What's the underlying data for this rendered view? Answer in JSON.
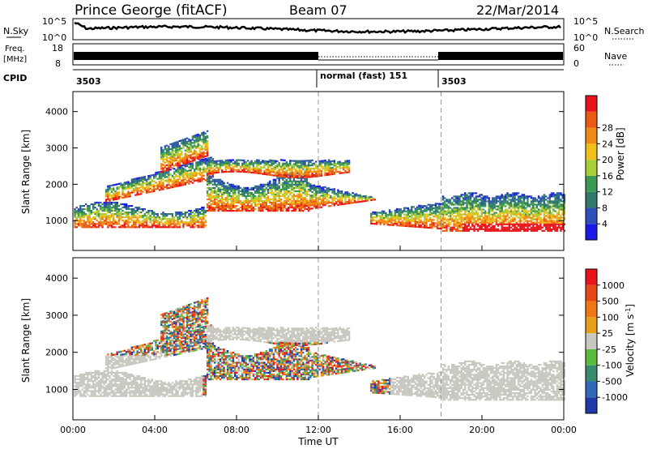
{
  "header": {
    "station": "Prince George (fitACF)",
    "beam": "Beam 07",
    "date": "22/Mar/2014"
  },
  "strips": {
    "nsky_label": "N.Sky",
    "nsky_ticks": [
      "10^5",
      "10^0"
    ],
    "nsearch_label": "N.Search",
    "nsearch_ticks": [
      "10^5",
      "10^0"
    ],
    "freq_label": [
      "Freq.",
      "[MHz]"
    ],
    "freq_ticks": [
      "18",
      "8"
    ],
    "nave_label": "Nave",
    "nave_ticks": [
      "60",
      "0"
    ],
    "cpid_label": "CPID",
    "cpid_segments": [
      {
        "label": "3503",
        "start": 0.0
      },
      {
        "label": "normal (fast) 151",
        "start": 12.0
      },
      {
        "label": "3503",
        "start": 18.0
      }
    ]
  },
  "chart_data": [
    {
      "type": "heatmap",
      "parameter": "power",
      "ylabel": "Slant Range [km]",
      "xlabel": "",
      "y_ticks": [
        "1000",
        "2000",
        "3000",
        "4000"
      ],
      "ylim": [
        180,
        4550
      ],
      "xlim": [
        0,
        24
      ],
      "colorbar_label": "Power [dB]",
      "colorbar_ticks": [
        "4",
        "8",
        "12",
        "16",
        "20",
        "24",
        "28"
      ],
      "colorbar_colors": [
        "#1a1ae6",
        "#2e4fb8",
        "#2f7a6a",
        "#3d9a55",
        "#a8cf3a",
        "#f0c018",
        "#f08a14",
        "#ea5a12",
        "#e8141a"
      ],
      "dashed_times": [
        12.0,
        18.0
      ]
    },
    {
      "type": "heatmap",
      "parameter": "velocity",
      "ylabel": "Slant Range [km]",
      "xlabel": "Time UT",
      "y_ticks": [
        "1000",
        "2000",
        "3000",
        "4000"
      ],
      "ylim": [
        180,
        4550
      ],
      "xlim": [
        0,
        24
      ],
      "x_ticks": [
        "00:00",
        "04:00",
        "08:00",
        "12:00",
        "16:00",
        "20:00",
        "00:00"
      ],
      "colorbar_label": "Velocity [m s",
      "colorbar_label_sup": "-1",
      "colorbar_label_end": "]",
      "colorbar_ticks": [
        "1000",
        "500",
        "100",
        "25",
        "-25",
        "-100",
        "-500",
        "-1000"
      ],
      "colorbar_colors": [
        "#1f3aa8",
        "#2e6ab8",
        "#3a8a6e",
        "#5aba3a",
        "#c8c8c0",
        "#e8a018",
        "#f07814",
        "#e84818",
        "#e8141a"
      ],
      "dashed_times": [
        12.0,
        18.0
      ]
    }
  ]
}
